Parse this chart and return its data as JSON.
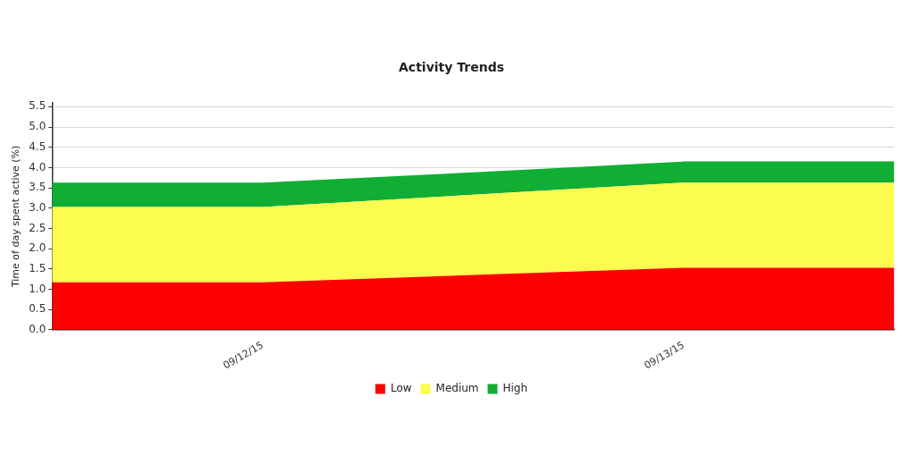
{
  "chart_data": {
    "type": "area",
    "title": "Activity Trends",
    "ylabel": "Time of day spent active (%)",
    "categories": [
      null,
      "09/12/15",
      null,
      "09/13/15",
      null
    ],
    "stacked": true,
    "series": [
      {
        "name": "Low",
        "color": "#ff0000",
        "values": [
          1.17,
          1.17,
          1.35,
          1.53,
          1.53
        ]
      },
      {
        "name": "Medium",
        "color": "#fbfb50",
        "values": [
          1.86,
          1.86,
          1.98,
          2.1,
          2.1
        ]
      },
      {
        "name": "High",
        "color": "#10ae33",
        "values": [
          0.6,
          0.6,
          0.55,
          0.52,
          0.52
        ]
      }
    ],
    "ylim": [
      0,
      5.6
    ],
    "yticks": [
      {
        "value": 0,
        "label": "0.0"
      },
      0.5,
      {
        "value": 1,
        "label": "1.0"
      },
      1.5,
      {
        "value": 2,
        "label": "2.0"
      },
      2.5,
      {
        "value": 3,
        "label": "3.0"
      },
      3.5,
      {
        "value": 4,
        "label": "4.0"
      },
      4.5,
      {
        "value": 5,
        "label": "5.0"
      },
      5.5
    ],
    "grid": "y",
    "legend": "bottom"
  }
}
